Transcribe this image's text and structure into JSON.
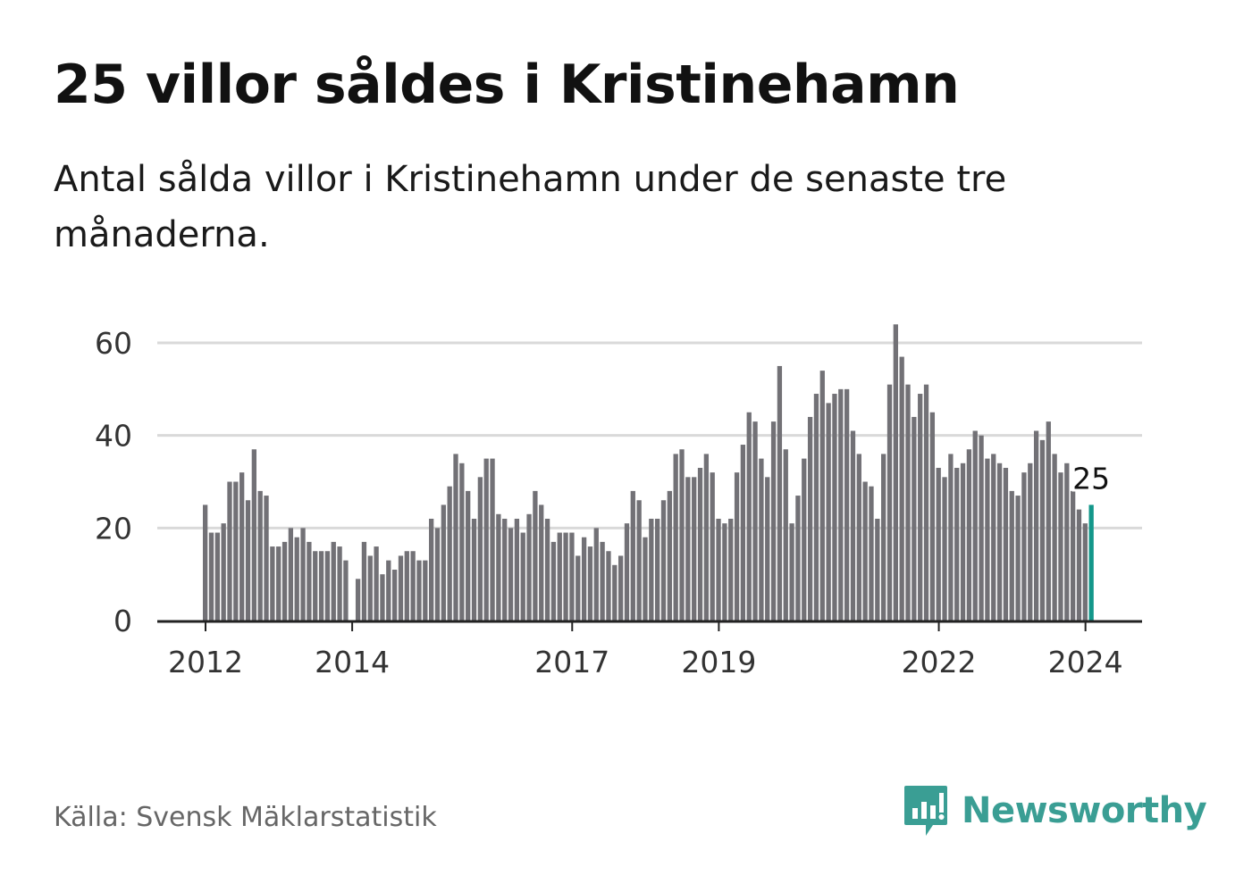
{
  "title": "25 villor såldes i Kristinehamn",
  "subtitle": "Antal sålda villor i Kristinehamn under de senaste tre månaderna.",
  "source": "Källa: Svensk Mäklarstatistik",
  "brand": {
    "name": "Newsworthy",
    "icon": "newsworthy-logo-icon",
    "color": "#3a9e94"
  },
  "colors": {
    "bar": "#727176",
    "highlight": "#13978a",
    "grid": "#d9d9d9",
    "axis": "#222222",
    "tick_text": "#333333"
  },
  "chart_data": {
    "type": "bar",
    "title": "25 villor såldes i Kristinehamn",
    "xlabel": "",
    "ylabel": "",
    "ylim": [
      0,
      66
    ],
    "yticks": [
      0,
      20,
      40,
      60
    ],
    "grid": true,
    "start": "2012-01",
    "period": "monthly",
    "xticks": [
      "2012",
      "2014",
      "2017",
      "2019",
      "2022",
      "2024"
    ],
    "highlight_label": "25",
    "values": [
      25,
      19,
      19,
      21,
      30,
      30,
      32,
      26,
      37,
      28,
      27,
      16,
      16,
      17,
      20,
      18,
      20,
      17,
      15,
      15,
      15,
      17,
      16,
      13,
      0,
      9,
      17,
      14,
      16,
      10,
      13,
      11,
      14,
      15,
      15,
      13,
      13,
      22,
      20,
      25,
      29,
      36,
      34,
      28,
      22,
      31,
      35,
      35,
      23,
      22,
      20,
      22,
      19,
      23,
      28,
      25,
      22,
      17,
      19,
      19,
      19,
      14,
      18,
      16,
      20,
      17,
      15,
      12,
      14,
      21,
      28,
      26,
      18,
      22,
      22,
      26,
      28,
      36,
      37,
      31,
      31,
      33,
      36,
      32,
      22,
      21,
      22,
      32,
      38,
      45,
      43,
      35,
      31,
      43,
      55,
      37,
      21,
      27,
      35,
      44,
      49,
      54,
      47,
      49,
      50,
      50,
      41,
      36,
      30,
      29,
      22,
      36,
      51,
      64,
      57,
      51,
      44,
      49,
      51,
      45,
      33,
      31,
      36,
      33,
      34,
      37,
      41,
      40,
      35,
      36,
      34,
      33,
      28,
      27,
      32,
      34,
      41,
      39,
      43,
      36,
      32,
      34,
      28,
      24,
      21,
      25
    ]
  }
}
